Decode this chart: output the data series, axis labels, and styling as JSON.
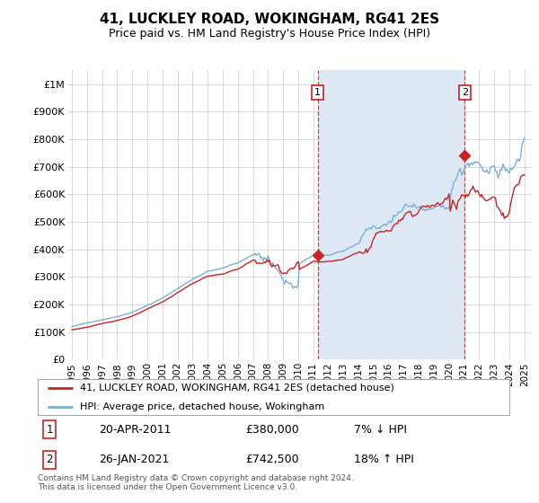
{
  "title": "41, LUCKLEY ROAD, WOKINGHAM, RG41 2ES",
  "subtitle": "Price paid vs. HM Land Registry's House Price Index (HPI)",
  "footnote": "Contains HM Land Registry data © Crown copyright and database right 2024.\nThis data is licensed under the Open Government Licence v3.0.",
  "legend_line1": "41, LUCKLEY ROAD, WOKINGHAM, RG41 2ES (detached house)",
  "legend_line2": "HPI: Average price, detached house, Wokingham",
  "annotation1_date": "20-APR-2011",
  "annotation1_price": "£380,000",
  "annotation1_hpi": "7% ↓ HPI",
  "annotation2_date": "26-JAN-2021",
  "annotation2_price": "£742,500",
  "annotation2_hpi": "18% ↑ HPI",
  "red_line_color": "#cc2222",
  "blue_line_color": "#7ab0d4",
  "vline_color": "#cc4444",
  "fill_color": "#dce9f5",
  "background_color": "#ffffff",
  "chart_bg_color": "#ffffff",
  "sale1_year": 2011.29,
  "sale1_price": 380000,
  "sale2_year": 2021.05,
  "sale2_price": 742500
}
